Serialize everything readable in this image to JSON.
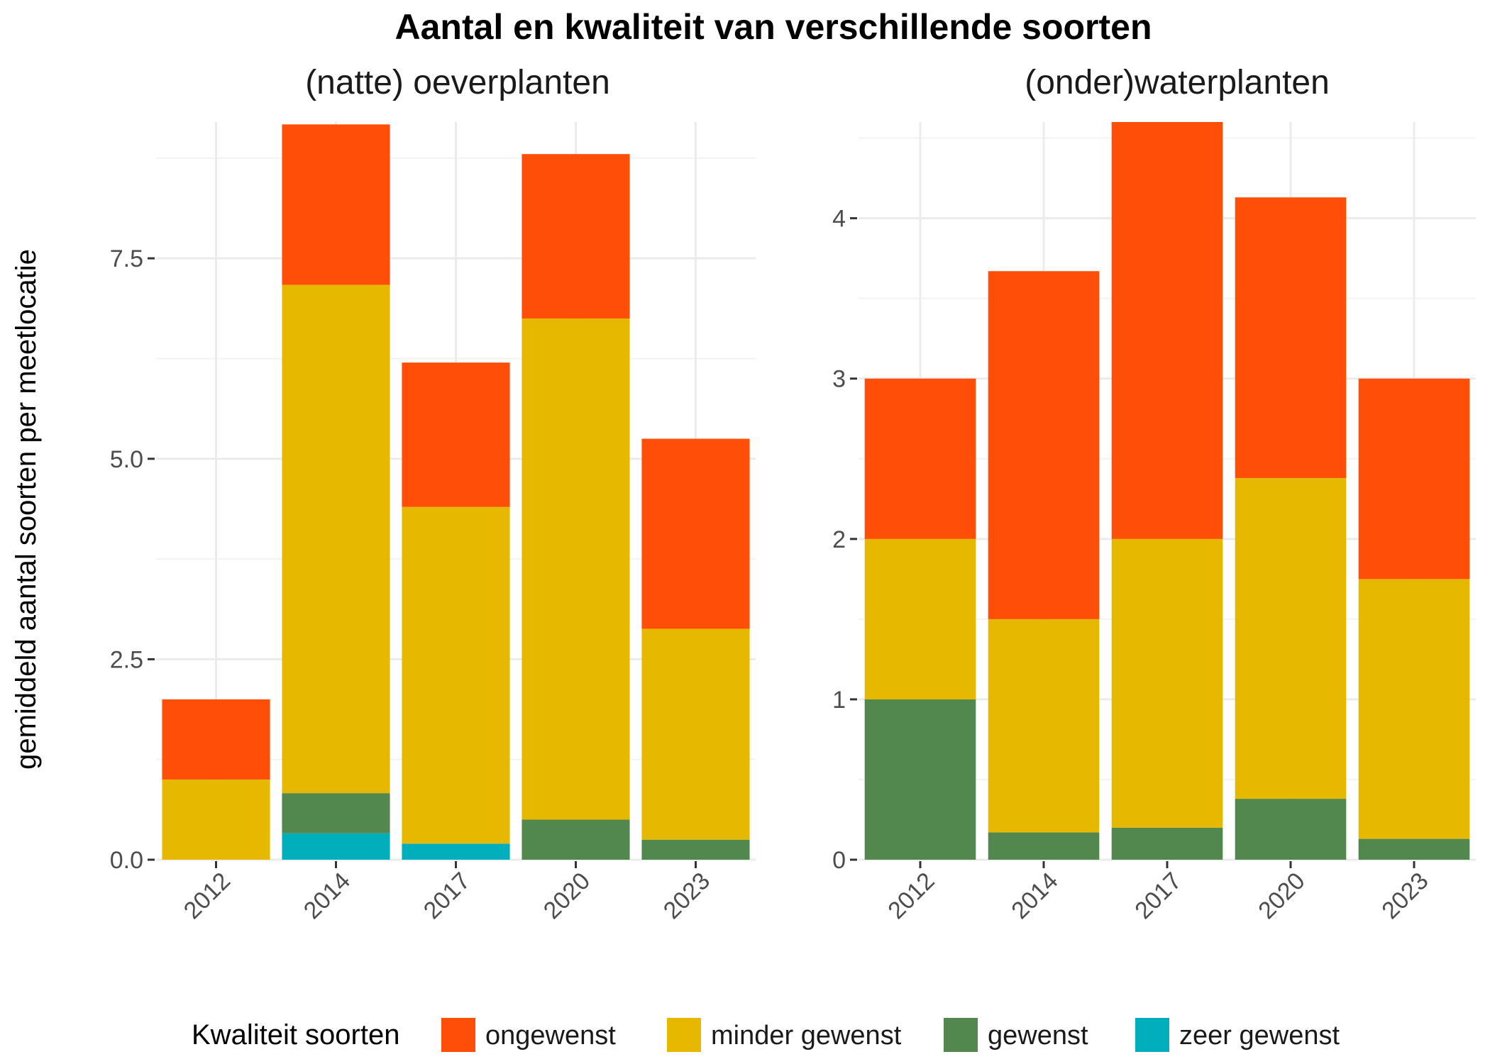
{
  "title": "Aantal en kwaliteit van verschillende soorten",
  "ylabel": "gemiddeld aantal soorten per meetlocatie",
  "legend": {
    "title": "Kwaliteit soorten",
    "position": "bottom"
  },
  "colors": {
    "ongewenst": "#FF4E08",
    "minder gewenst": "#E6B800",
    "gewenst": "#52874E",
    "zeer gewenst": "#00AFBB"
  },
  "chart_data": [
    {
      "type": "bar",
      "stacked": true,
      "title": "(natte) oeverplanten",
      "categories": [
        "2012",
        "2014",
        "2017",
        "2020",
        "2023"
      ],
      "ylim": [
        0,
        9.2
      ],
      "yticks": [
        "0.0",
        "2.5",
        "5.0",
        "7.5"
      ],
      "ytick_values": [
        0,
        2.5,
        5,
        7.5
      ],
      "grid": true,
      "series": [
        {
          "name": "zeer gewenst",
          "values": [
            0,
            0.33,
            0.2,
            0,
            0
          ]
        },
        {
          "name": "gewenst",
          "values": [
            0,
            0.5,
            0,
            0.5,
            0.25
          ]
        },
        {
          "name": "minder gewenst",
          "values": [
            1,
            6.34,
            4.2,
            6.25,
            2.63
          ]
        },
        {
          "name": "ongewenst",
          "values": [
            1,
            2.0,
            1.8,
            2.05,
            2.37
          ]
        }
      ]
    },
    {
      "type": "bar",
      "stacked": true,
      "title": "(onder)waterplanten",
      "categories": [
        "2012",
        "2014",
        "2017",
        "2020",
        "2023"
      ],
      "ylim": [
        0,
        4.6
      ],
      "yticks": [
        "0",
        "1",
        "2",
        "3",
        "4"
      ],
      "ytick_values": [
        0,
        1,
        2,
        3,
        4
      ],
      "grid": true,
      "series": [
        {
          "name": "zeer gewenst",
          "values": [
            0,
            0,
            0,
            0,
            0
          ]
        },
        {
          "name": "gewenst",
          "values": [
            1,
            0.17,
            0.2,
            0.38,
            0.13
          ]
        },
        {
          "name": "minder gewenst",
          "values": [
            1,
            1.33,
            1.8,
            2.0,
            1.62
          ]
        },
        {
          "name": "ongewenst",
          "values": [
            1,
            2.17,
            2.6,
            1.75,
            1.25
          ]
        }
      ]
    }
  ]
}
